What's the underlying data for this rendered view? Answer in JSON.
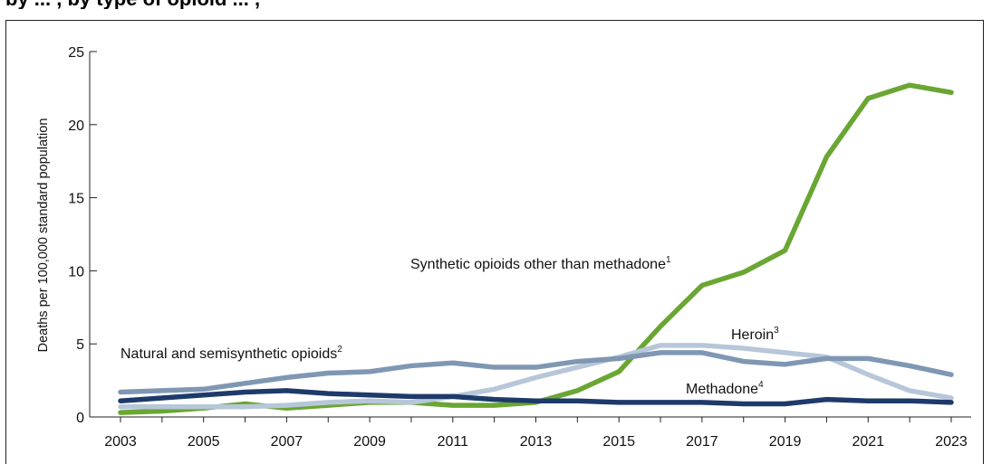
{
  "header": {
    "title_fragment": "by ... , by type of opioid ... , "
  },
  "chart_data": {
    "type": "line",
    "title": "",
    "xlabel": "",
    "ylabel": "Deaths per 100,000 standard population",
    "xlim": [
      2003,
      2023
    ],
    "ylim": [
      0,
      25
    ],
    "x_ticks": [
      "2003",
      "2005",
      "2007",
      "2009",
      "2011",
      "2013",
      "2015",
      "2017",
      "2019",
      "2021",
      "2023"
    ],
    "y_ticks": [
      "0",
      "5",
      "10",
      "15",
      "20",
      "25"
    ],
    "grid": false,
    "x": [
      2003,
      2004,
      2005,
      2006,
      2007,
      2008,
      2009,
      2010,
      2011,
      2012,
      2013,
      2014,
      2015,
      2016,
      2017,
      2018,
      2019,
      2020,
      2021,
      2022,
      2023
    ],
    "series": [
      {
        "name": "Synthetic opioids other than methadone",
        "superscript": "1",
        "color": "#6aa633",
        "values": [
          0.3,
          0.4,
          0.6,
          0.9,
          0.6,
          0.8,
          1.0,
          1.0,
          0.8,
          0.8,
          1.0,
          1.8,
          3.1,
          6.2,
          9.0,
          9.9,
          11.4,
          17.8,
          21.8,
          22.7,
          22.2
        ]
      },
      {
        "name": "Heroin",
        "superscript": "3",
        "color": "#b7c7d9",
        "values": [
          0.7,
          0.7,
          0.7,
          0.7,
          0.8,
          1.0,
          1.1,
          1.0,
          1.4,
          1.9,
          2.7,
          3.4,
          4.1,
          4.9,
          4.9,
          4.7,
          4.4,
          4.1,
          2.9,
          1.8,
          1.3
        ]
      },
      {
        "name": "Natural and semisynthetic opioids",
        "superscript": "2",
        "color": "#7f97b3",
        "values": [
          1.7,
          1.8,
          1.9,
          2.3,
          2.7,
          3.0,
          3.1,
          3.5,
          3.7,
          3.4,
          3.4,
          3.8,
          4.0,
          4.4,
          4.4,
          3.8,
          3.6,
          4.0,
          4.0,
          3.5,
          2.9
        ]
      },
      {
        "name": "Methadone",
        "superscript": "4",
        "color": "#1e3a6b",
        "values": [
          1.1,
          1.3,
          1.5,
          1.7,
          1.8,
          1.6,
          1.5,
          1.4,
          1.4,
          1.2,
          1.1,
          1.1,
          1.0,
          1.0,
          1.0,
          0.9,
          0.9,
          1.2,
          1.1,
          1.1,
          1.0
        ]
      }
    ]
  }
}
